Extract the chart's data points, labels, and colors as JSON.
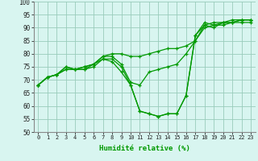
{
  "xlabel": "Humidité relative (%)",
  "background_color": "#d8f5f0",
  "grid_color": "#99ccbb",
  "line_color": "#009900",
  "xlim": [
    -0.5,
    23.5
  ],
  "ylim": [
    50,
    100
  ],
  "yticks": [
    50,
    55,
    60,
    65,
    70,
    75,
    80,
    85,
    90,
    95,
    100
  ],
  "xticks": [
    0,
    1,
    2,
    3,
    4,
    5,
    6,
    7,
    8,
    9,
    10,
    11,
    12,
    13,
    14,
    15,
    16,
    17,
    18,
    19,
    20,
    21,
    22,
    23
  ],
  "lines": [
    [
      68,
      71,
      72,
      74,
      74,
      75,
      76,
      79,
      80,
      80,
      79,
      79,
      80,
      81,
      82,
      82,
      83,
      85,
      90,
      91,
      91,
      92,
      92,
      92
    ],
    [
      68,
      71,
      72,
      74,
      74,
      75,
      76,
      79,
      79,
      76,
      69,
      68,
      73,
      74,
      75,
      76,
      80,
      85,
      91,
      92,
      92,
      92,
      93,
      93
    ],
    [
      68,
      71,
      72,
      75,
      74,
      74,
      76,
      78,
      78,
      75,
      68,
      58,
      57,
      56,
      57,
      57,
      64,
      87,
      92,
      91,
      92,
      93,
      93,
      93
    ],
    [
      68,
      71,
      72,
      75,
      74,
      74,
      75,
      78,
      77,
      73,
      68,
      58,
      57,
      56,
      57,
      57,
      64,
      87,
      91,
      90,
      92,
      92,
      93,
      93
    ]
  ]
}
